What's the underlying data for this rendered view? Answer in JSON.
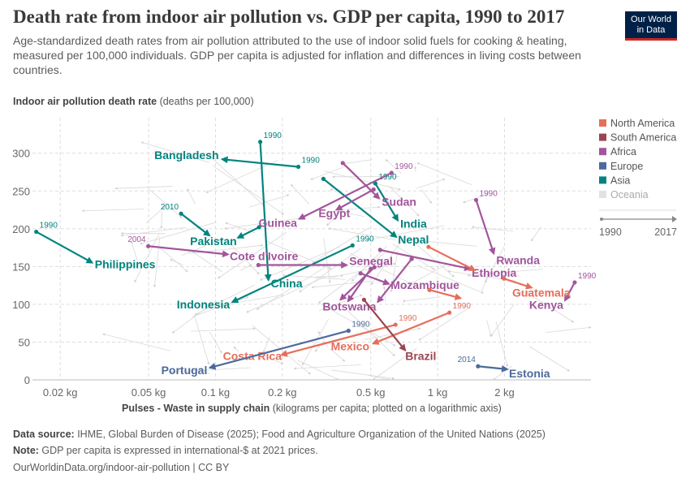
{
  "header": {
    "title": "Death rate from indoor air pollution vs. GDP per capita, 1990 to 2017",
    "subtitle": "Age-standardized death rates from air pollution attributed to the use of indoor solid fuels for cooking & heating, measured per 100,000 individuals. GDP per capita is adjusted for inflation and differences in living costs between countries.",
    "logo_line1": "Our World",
    "logo_line2": "in Data"
  },
  "footer": {
    "source_label": "Data source:",
    "source_text": " IHME, Global Burden of Disease (2025); Food and Agriculture Organization of the United Nations (2025)",
    "note_label": "Note:",
    "note_text": " GDP per capita is expressed in international-$ at 2021 prices.",
    "url": "OurWorldinData.org/indoor-air-pollution | CC BY"
  },
  "chart_data": {
    "type": "scatter",
    "title": "Death rate from indoor air pollution vs. GDP per capita, 1990 to 2017",
    "ylabel_bold": "Indoor air pollution death rate",
    "ylabel_rest": " (deaths per 100,000)",
    "xlabel_bold": "Pulses - Waste in supply chain",
    "xlabel_rest": " (kilograms per capita; plotted on a logarithmic axis)",
    "xscale": "log",
    "xlim": [
      0.015,
      4.9
    ],
    "ylim": [
      0,
      347
    ],
    "xticks": [
      {
        "value": 0.02,
        "label": "0.02 kg"
      },
      {
        "value": 0.05,
        "label": "0.05 kg"
      },
      {
        "value": 0.1,
        "label": "0.1 kg"
      },
      {
        "value": 0.2,
        "label": "0.2 kg"
      },
      {
        "value": 0.5,
        "label": "0.5 kg"
      },
      {
        "value": 1,
        "label": "1 kg"
      },
      {
        "value": 2,
        "label": "2 kg"
      }
    ],
    "yticks": [
      {
        "value": 0,
        "label": "0"
      },
      {
        "value": 50,
        "label": "50"
      },
      {
        "value": 100,
        "label": "100"
      },
      {
        "value": 150,
        "label": "150"
      },
      {
        "value": 200,
        "label": "200"
      },
      {
        "value": 250,
        "label": "250"
      },
      {
        "value": 300,
        "label": "300"
      }
    ],
    "grid": true,
    "legend_placement": "right",
    "legend": [
      {
        "name": "North America",
        "color": "#e56e5a"
      },
      {
        "name": "South America",
        "color": "#9a4650"
      },
      {
        "name": "Africa",
        "color": "#a2559c"
      },
      {
        "name": "Europe",
        "color": "#4c6a9c"
      },
      {
        "name": "Asia",
        "color": "#00847e"
      },
      {
        "name": "Oceania",
        "color": "#e2e2e2"
      }
    ],
    "time_legend": {
      "start": "1990",
      "end": "2017"
    },
    "series": [
      {
        "name": "Bangladesh",
        "region": "Asia",
        "start_label": "1990",
        "start": [
          0.236,
          282
        ],
        "end": [
          0.107,
          292
        ]
      },
      {
        "name": "China",
        "region": "Asia",
        "start_label": "1990",
        "start": [
          0.159,
          315
        ],
        "end": [
          0.173,
          132
        ]
      },
      {
        "name": "Pakistan",
        "region": "Asia",
        "start_label": "2010",
        "start": [
          0.07,
          220
        ],
        "end": [
          0.094,
          191
        ]
      },
      {
        "name": "",
        "region": "Asia",
        "start_label": "",
        "start": [
          0.157,
          202
        ],
        "end": [
          0.126,
          188
        ]
      },
      {
        "name": "Philippines",
        "region": "Asia",
        "start_label": "1990",
        "start": [
          0.0156,
          196
        ],
        "end": [
          0.0279,
          155
        ]
      },
      {
        "name": "Indonesia",
        "region": "Asia",
        "start_label": "1990",
        "start": [
          0.414,
          178
        ],
        "end": [
          0.119,
          103
        ]
      },
      {
        "name": "Nepal",
        "region": "Asia",
        "start_label": "",
        "start": [
          0.306,
          266
        ],
        "end": [
          0.652,
          189
        ]
      },
      {
        "name": "India",
        "region": "Asia",
        "start_label": "1990",
        "start": [
          0.524,
          260
        ],
        "end": [
          0.662,
          211
        ]
      },
      {
        "name": "Sudan",
        "region": "Africa",
        "start_label": "",
        "start": [
          0.374,
          287
        ],
        "end": [
          0.546,
          240
        ]
      },
      {
        "name": "Guinea",
        "region": "Africa",
        "start_label": "1990",
        "start": [
          0.62,
          274
        ],
        "end": [
          0.238,
          213
        ]
      },
      {
        "name": "Egypt",
        "region": "Africa",
        "start_label": "",
        "start": [
          0.515,
          252
        ],
        "end": [
          0.35,
          225
        ]
      },
      {
        "name": "Cote d'Ivoire",
        "region": "Africa",
        "start_label": "2004",
        "start": [
          0.0498,
          177
        ],
        "end": [
          0.114,
          166
        ]
      },
      {
        "name": "Senegal",
        "region": "Africa",
        "start_label": "",
        "start": [
          0.156,
          152
        ],
        "end": [
          0.39,
          152
        ]
      },
      {
        "name": "Botswana",
        "region": "Africa",
        "start_label": "",
        "start": [
          0.519,
          149
        ],
        "end": [
          0.365,
          106
        ]
      },
      {
        "name": "",
        "region": "Africa",
        "start_label": "",
        "start": [
          0.5,
          147
        ],
        "end": [
          0.395,
          104
        ]
      },
      {
        "name": "",
        "region": "Africa",
        "start_label": "",
        "start": [
          0.764,
          160
        ],
        "end": [
          0.537,
          103
        ]
      },
      {
        "name": "Mozambique",
        "region": "Africa",
        "start_label": "",
        "start": [
          0.45,
          141
        ],
        "end": [
          0.604,
          127
        ]
      },
      {
        "name": "Ethiopia",
        "region": "Africa",
        "start_label": "",
        "start": [
          0.551,
          172
        ],
        "end": [
          1.4,
          147
        ]
      },
      {
        "name": "Rwanda",
        "region": "Africa",
        "start_label": "1990",
        "start": [
          1.49,
          238
        ],
        "end": [
          1.79,
          167
        ]
      },
      {
        "name": "Kenya",
        "region": "Africa",
        "start_label": "1990",
        "start": [
          4.14,
          129
        ],
        "end": [
          3.74,
          105
        ]
      },
      {
        "name": "",
        "region": "North America",
        "start_label": "",
        "start": [
          0.91,
          176
        ],
        "end": [
          1.47,
          145
        ]
      },
      {
        "name": "",
        "region": "North America",
        "start_label": "",
        "start": [
          0.919,
          119
        ],
        "end": [
          1.27,
          108
        ]
      },
      {
        "name": "Guatemala",
        "region": "North America",
        "start_label": "",
        "start": [
          1.99,
          134
        ],
        "end": [
          2.65,
          122
        ]
      },
      {
        "name": "Mexico",
        "region": "North America",
        "start_label": "1990",
        "start": [
          1.13,
          89
        ],
        "end": [
          0.512,
          48
        ]
      },
      {
        "name": "Costa Rica",
        "region": "North America",
        "start_label": "1990",
        "start": [
          0.646,
          73
        ],
        "end": [
          0.198,
          33
        ]
      },
      {
        "name": "Brazil",
        "region": "South America",
        "start_label": "",
        "start": [
          0.466,
          106
        ],
        "end": [
          0.715,
          39
        ]
      },
      {
        "name": "Portugal",
        "region": "Europe",
        "start_label": "1990",
        "start": [
          0.397,
          65
        ],
        "end": [
          0.0942,
          16
        ]
      },
      {
        "name": "Estonia",
        "region": "Europe",
        "start_label": "2014",
        "start": [
          1.52,
          18
        ],
        "end": [
          2.06,
          14
        ]
      }
    ]
  }
}
